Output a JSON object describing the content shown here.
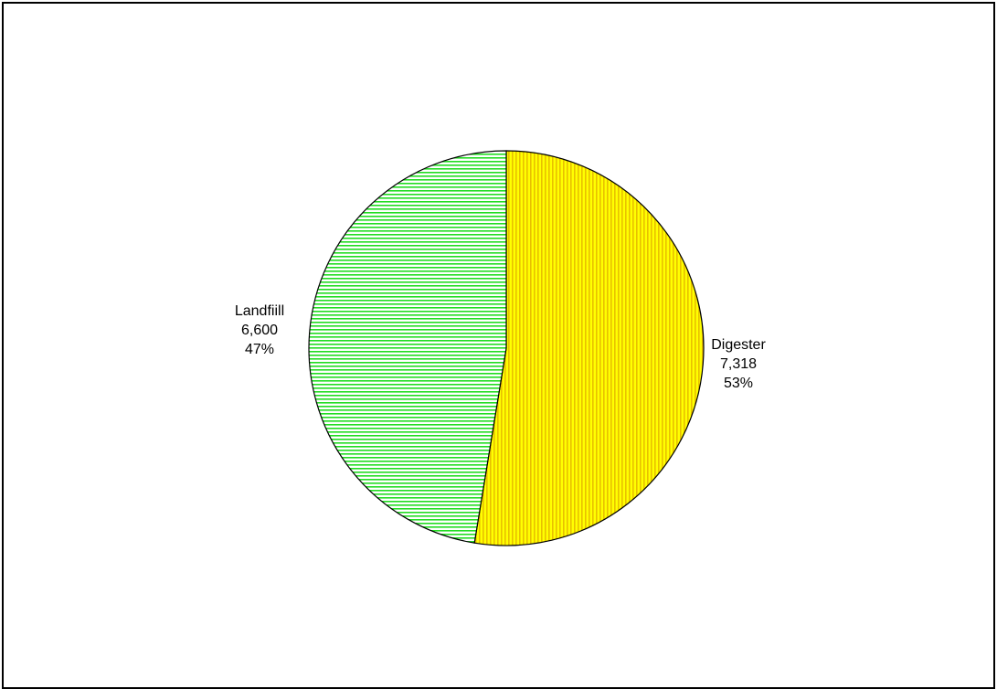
{
  "chart_data": {
    "type": "pie",
    "title": "",
    "slices": [
      {
        "label": "Digester",
        "value": 7318,
        "value_text": "7,318",
        "percent_text": "53%",
        "color": "#ffff00",
        "stripe_color": "#e8c000",
        "pattern": "vertical-stripes"
      },
      {
        "label": "Landfiill",
        "value": 6600,
        "value_text": "6,600",
        "percent_text": "47%",
        "color": "#ffffff",
        "stripe_color": "#22dd22",
        "pattern": "horizontal-stripes"
      }
    ],
    "start_angle": "12 o'clock",
    "direction": "clockwise",
    "legend": "none"
  }
}
